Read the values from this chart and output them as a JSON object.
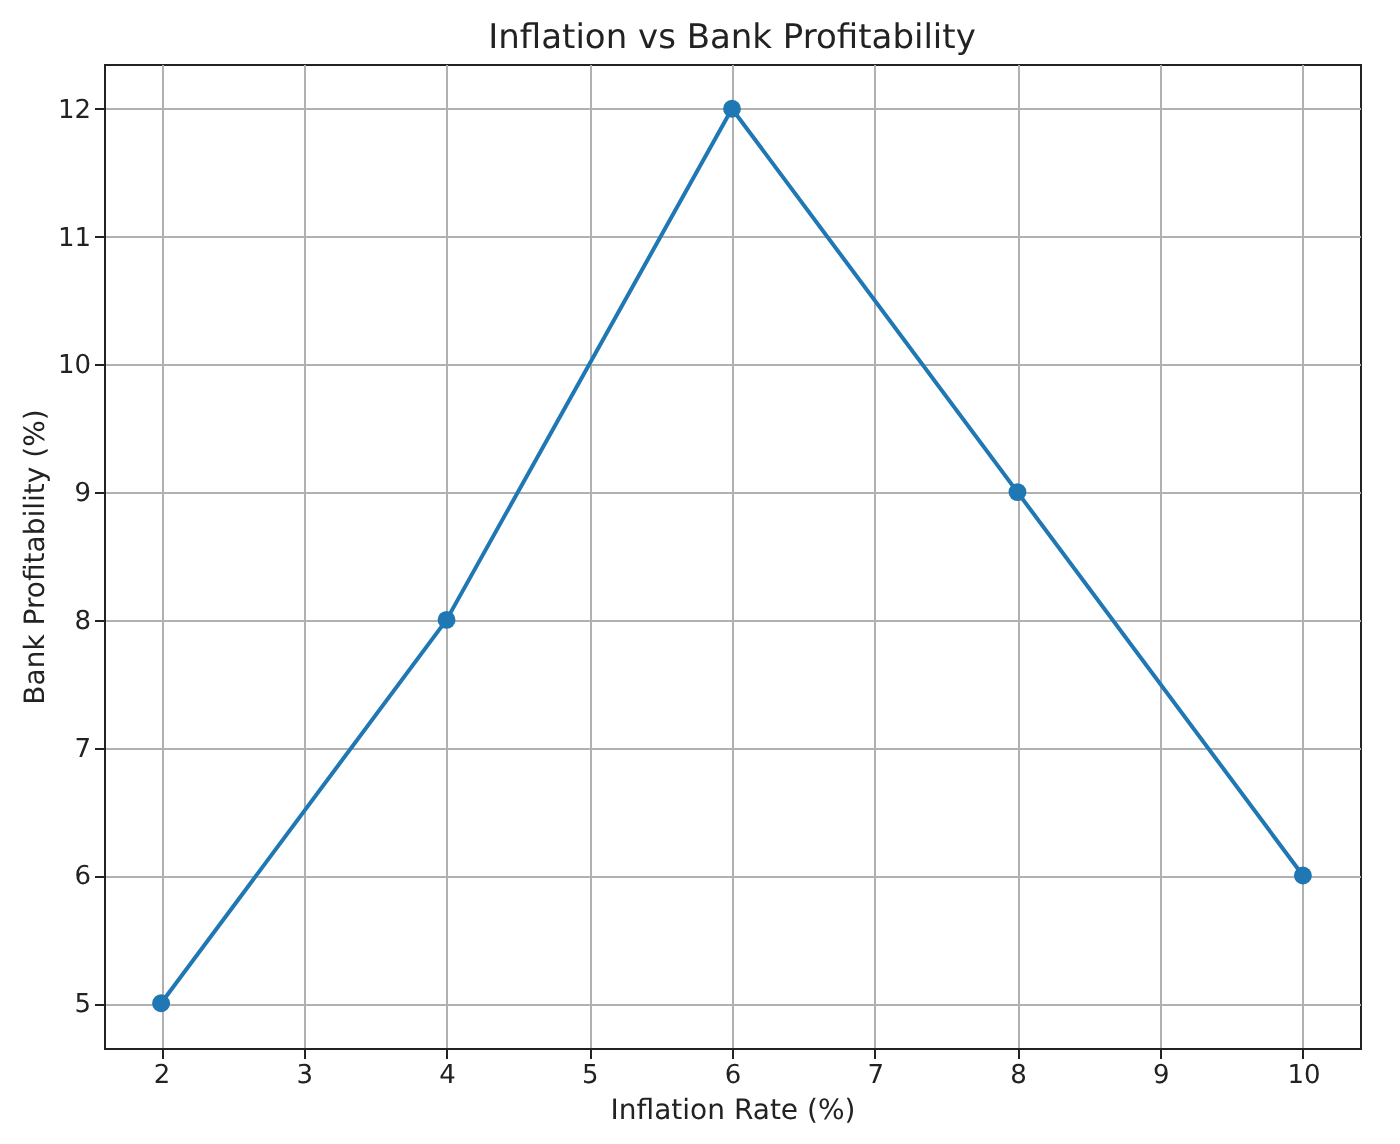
{
  "chart_data": {
    "type": "line",
    "title": "Inflation vs Bank Profitability",
    "xlabel": "Inflation Rate (%)",
    "ylabel": "Bank Profitability (%)",
    "x": [
      2,
      4,
      6,
      8,
      10
    ],
    "series": [
      {
        "color": "#1f77b4",
        "values": [
          5,
          8,
          12,
          9,
          6
        ]
      }
    ],
    "xlim": [
      1.6,
      10.4
    ],
    "xticks": [
      2,
      3,
      4,
      5,
      6,
      7,
      8,
      9,
      10
    ],
    "ylim": [
      4.65,
      12.35
    ],
    "yticks": [
      5,
      6,
      7,
      8,
      9,
      10,
      11,
      12
    ],
    "grid": true,
    "marker": "circle",
    "line_style": "solid"
  }
}
